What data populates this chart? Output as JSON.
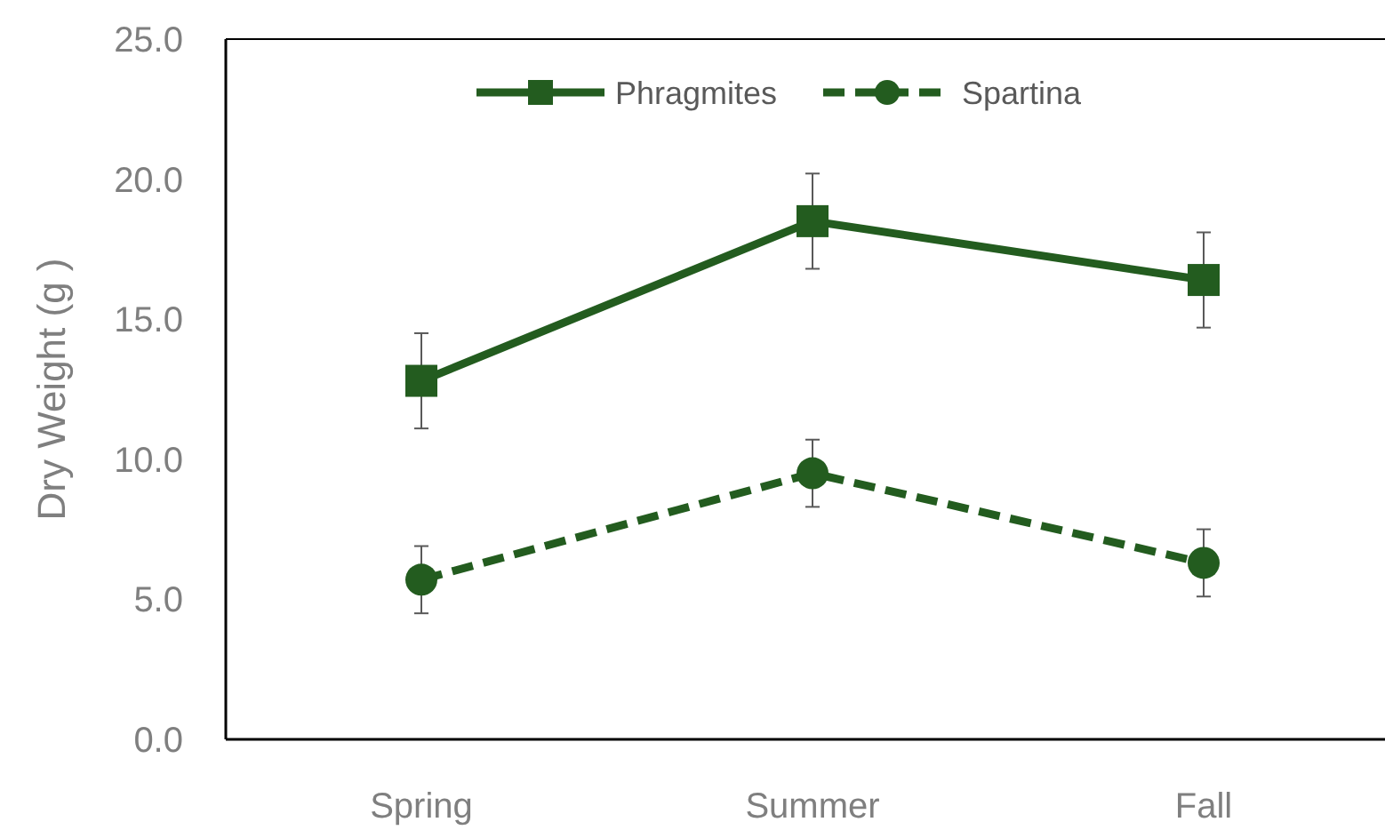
{
  "chart_data": {
    "type": "line",
    "ylabel": "Dry Weight (g )",
    "categories": [
      "Spring",
      "Summer",
      "Fall"
    ],
    "series": [
      {
        "name": "Phragmites",
        "color": "#235c1f",
        "values": [
          12.8,
          18.5,
          16.4
        ],
        "errors": [
          1.7,
          1.7,
          1.7
        ],
        "marker": "square",
        "line_style": "solid"
      },
      {
        "name": "Spartina",
        "color": "#235c1f",
        "values": [
          5.7,
          9.5,
          6.3
        ],
        "errors": [
          1.2,
          1.2,
          1.2
        ],
        "marker": "circle",
        "line_style": "dashed"
      }
    ],
    "ylim": [
      0,
      25
    ],
    "yticks": [
      {
        "value": 0,
        "label": "0.0"
      },
      {
        "value": 5,
        "label": "5.0"
      },
      {
        "value": 10,
        "label": "10.0"
      },
      {
        "value": 15,
        "label": "15.0"
      },
      {
        "value": 20,
        "label": "20.0"
      },
      {
        "value": 25,
        "label": "25.0"
      }
    ],
    "grid": false,
    "legend": "top"
  }
}
